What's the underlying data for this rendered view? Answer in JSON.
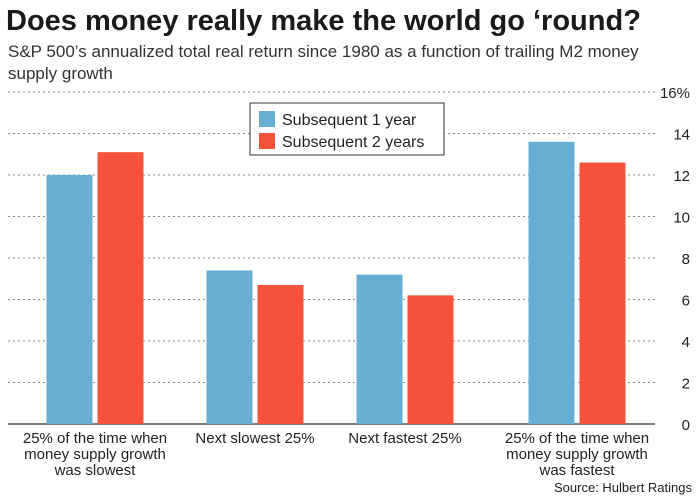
{
  "header": {
    "title": "Does money really make the world go ‘round?",
    "subtitle": "S&P 500’s annualized total real return since 1980 as a function of trailing M2 money supply growth"
  },
  "source": "Source: Hulbert Ratings",
  "colors": {
    "series1": "#67afd2",
    "series2": "#f7523b",
    "grid": "#8a8a8a",
    "text": "#222222"
  },
  "chart_data": {
    "type": "bar",
    "title": "Does money really make the world go ‘round?",
    "subtitle": "S&P 500’s annualized total real return since 1980 as a function of trailing M2 money supply growth",
    "categories": [
      "25% of the time when money supply growth was slowest",
      "Next slowest 25%",
      "Next fastest 25%",
      "25% of the time when money supply growth was fastest"
    ],
    "series": [
      {
        "name": "Subsequent 1 year",
        "color": "#67afd2",
        "values": [
          12.0,
          7.4,
          7.2,
          13.6
        ]
      },
      {
        "name": "Subsequent 2 years",
        "color": "#f7523b",
        "values": [
          13.1,
          6.7,
          6.2,
          12.6
        ]
      }
    ],
    "yticks": [
      "0",
      "2",
      "4",
      "6",
      "8",
      "10",
      "12",
      "14",
      "16%"
    ],
    "ylim": [
      0,
      16
    ],
    "yaxis_position": "right",
    "grid": true,
    "legend_position": "top-center",
    "xlabel": "",
    "ylabel": ""
  }
}
